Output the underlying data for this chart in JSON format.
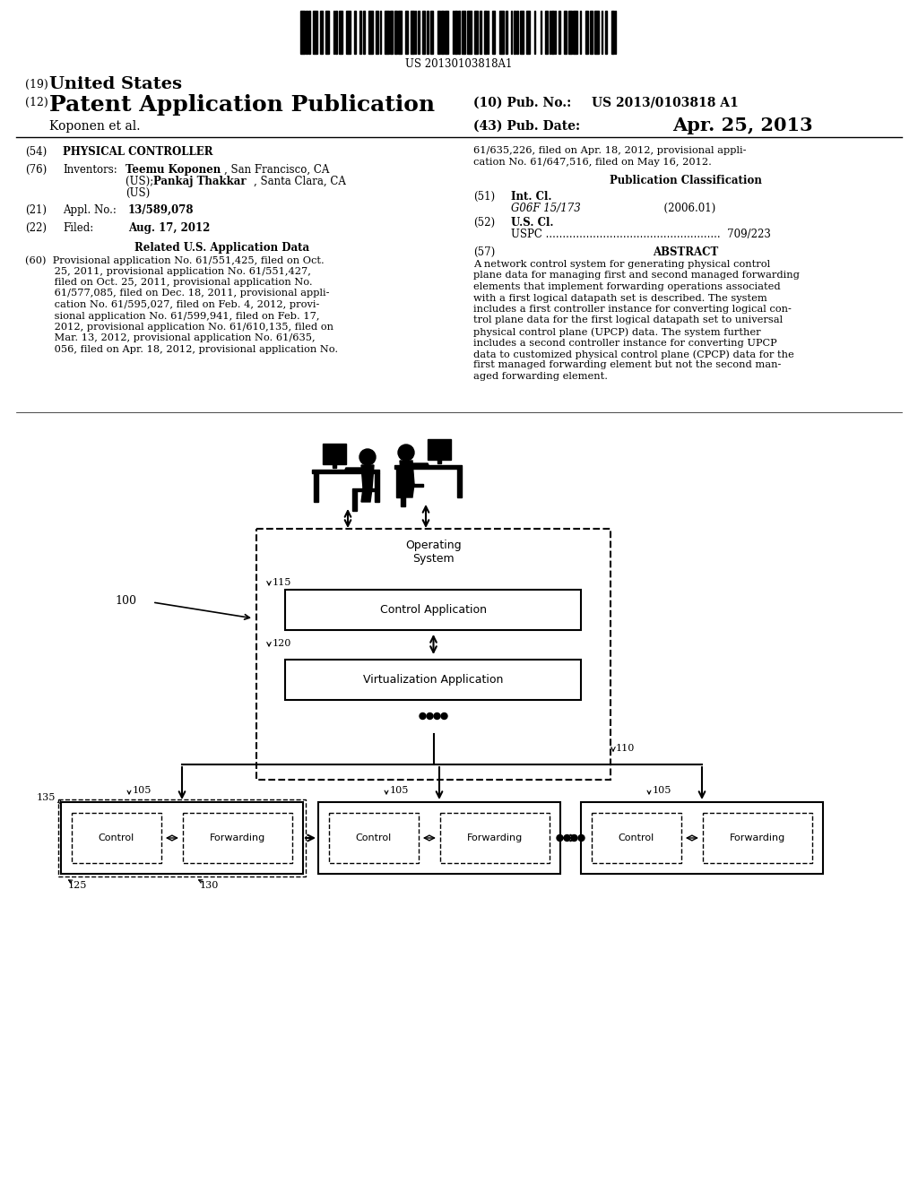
{
  "bg_color": "#ffffff",
  "barcode_text": "US 20130103818A1",
  "title_19_num": "(19)",
  "title_19_text": "United States",
  "title_12_num": "(12)",
  "title_12_text": "Patent Application Publication",
  "pub_no_label": "(10) Pub. No.:",
  "pub_no_value": "US 2013/0103818 A1",
  "authors": "Koponen et al.",
  "pub_date_label": "(43) Pub. Date:",
  "pub_date": "Apr. 25, 2013",
  "related_title": "Related U.S. Application Data",
  "pub_class_title": "Publication Classification",
  "os_label": "Operating\nSystem",
  "control_app_label": "Control Application",
  "virt_app_label": "Virtualization Application",
  "control_label": "Control",
  "forwarding_label": "Forwarding"
}
